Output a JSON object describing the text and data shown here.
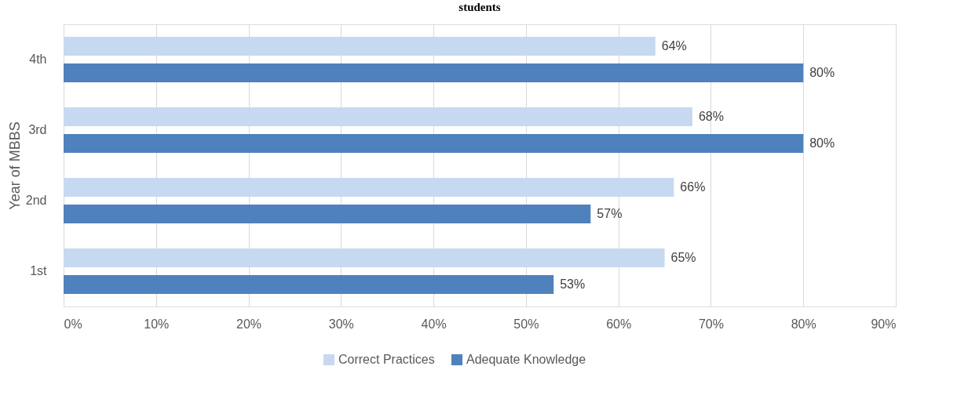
{
  "chart_data": {
    "type": "bar",
    "orientation": "horizontal",
    "ylabel": "Year of MBBS",
    "annotations": [
      "students"
    ],
    "categories": [
      "4th",
      "3rd",
      "2nd",
      "1st"
    ],
    "series": [
      {
        "name": "Correct Practices",
        "color": "#c6d9f0",
        "values": [
          64,
          68,
          66,
          65
        ],
        "value_labels": [
          "64%",
          "68%",
          "66%",
          "65%"
        ]
      },
      {
        "name": "Adequate Knowledge",
        "color": "#4f81bd",
        "values": [
          80,
          80,
          57,
          53
        ],
        "value_labels": [
          "80%",
          "80%",
          "57%",
          "53%"
        ]
      }
    ],
    "xlim": [
      0,
      90
    ],
    "xticks": [
      {
        "value": 0,
        "label": "0%"
      },
      {
        "value": 10,
        "label": "10%"
      },
      {
        "value": 20,
        "label": "20%"
      },
      {
        "value": 30,
        "label": "30%"
      },
      {
        "value": 40,
        "label": "40%"
      },
      {
        "value": 50,
        "label": "50%"
      },
      {
        "value": 60,
        "label": "60%"
      },
      {
        "value": 70,
        "label": "70%"
      },
      {
        "value": 80,
        "label": "80%"
      },
      {
        "value": 90,
        "label": "90%"
      }
    ],
    "grid": "x",
    "legend": "bottom"
  }
}
